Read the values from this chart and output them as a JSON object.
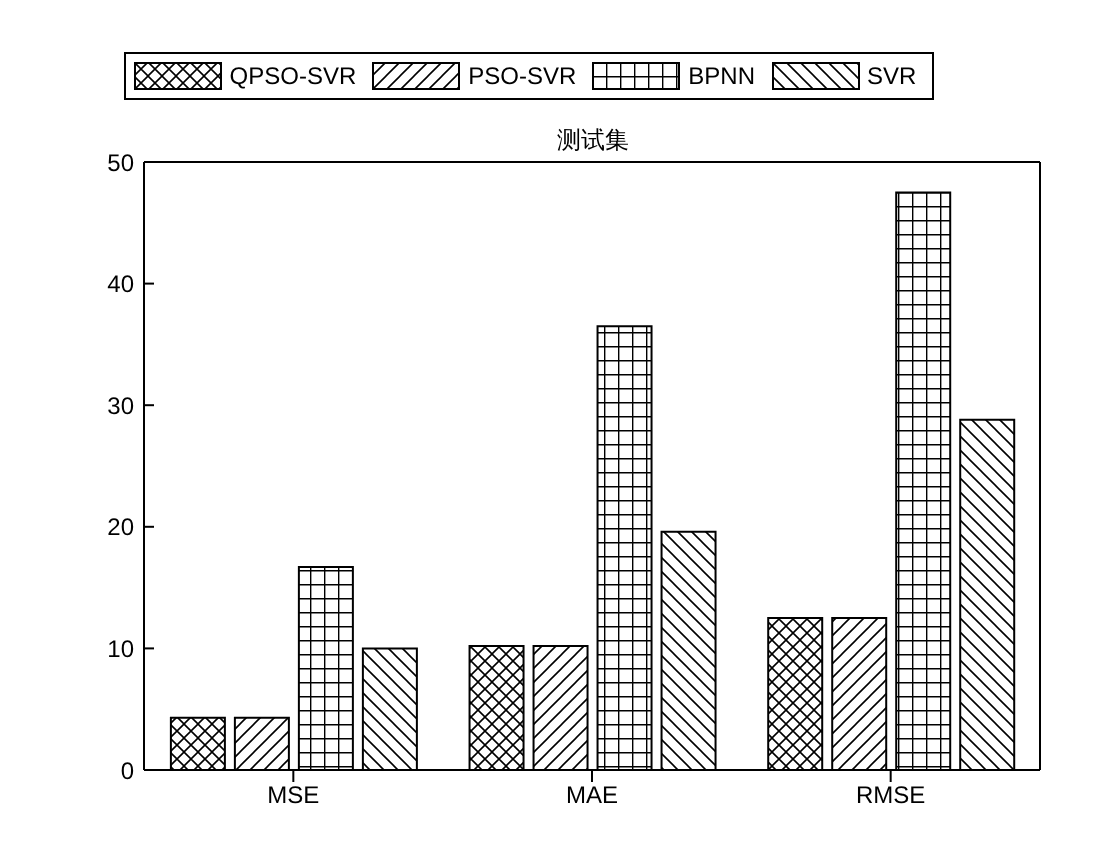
{
  "chart_data": {
    "type": "bar",
    "title": "测试集",
    "categories": [
      "MSE",
      "MAE",
      "RMSE"
    ],
    "series": [
      {
        "name": "QPSO-SVR",
        "color": "#000000",
        "values": [
          4.3,
          10.2,
          12.5
        ]
      },
      {
        "name": "PSO-SVR",
        "color": "#000000",
        "values": [
          4.3,
          10.2,
          12.5
        ]
      },
      {
        "name": "BPNN",
        "color": "#000000",
        "values": [
          16.7,
          36.5,
          47.5
        ]
      },
      {
        "name": "SVR",
        "color": "#000000",
        "values": [
          10.0,
          19.6,
          28.8
        ]
      }
    ],
    "ylim": [
      0,
      50
    ],
    "yticks": [
      0,
      10,
      20,
      30,
      40,
      50
    ],
    "grid": false,
    "legend": "top"
  }
}
